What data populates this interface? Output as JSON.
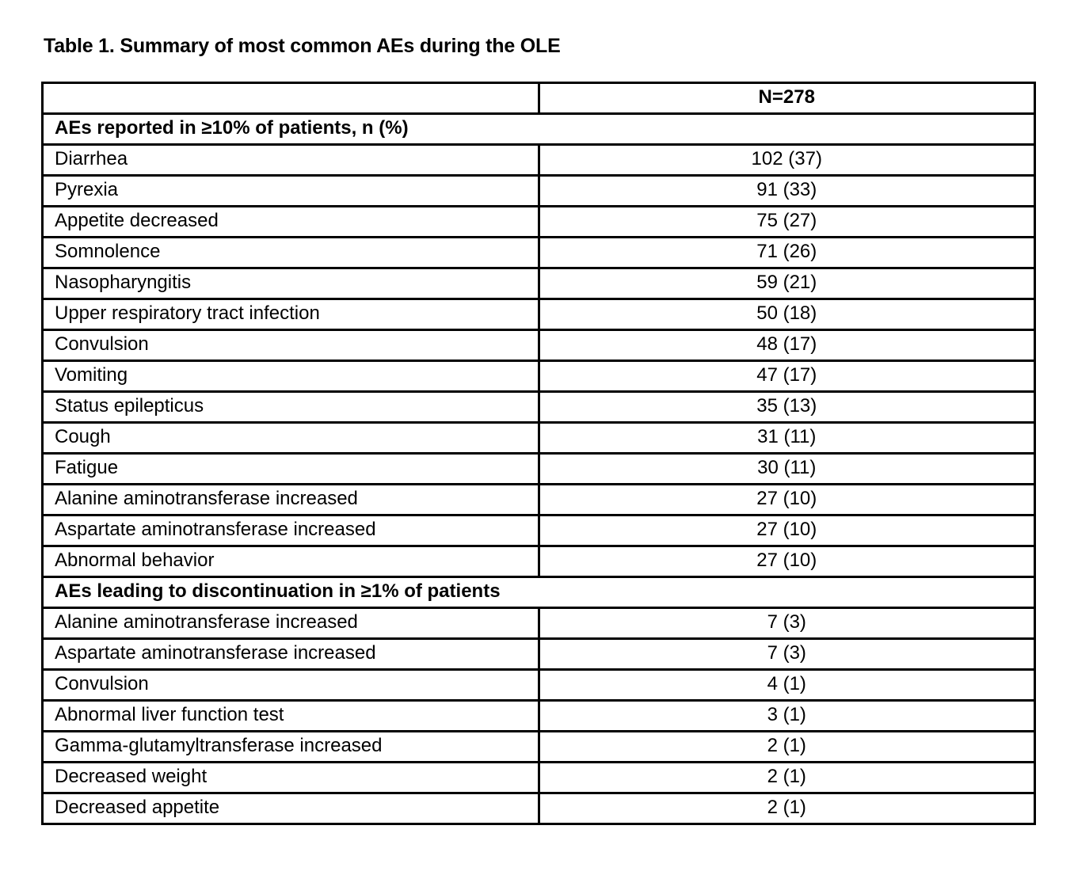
{
  "page": {
    "title": "Table 1. Summary of most common AEs during the OLE"
  },
  "table": {
    "header": {
      "term_col": "",
      "value_col": "N=278"
    },
    "sections": [
      {
        "label": "AEs reported in ≥10% of patients, n (%)",
        "rows": [
          {
            "term": "Diarrhea",
            "value": "102 (37)"
          },
          {
            "term": "Pyrexia",
            "value": "91 (33)"
          },
          {
            "term": "Appetite decreased",
            "value": "75 (27)"
          },
          {
            "term": "Somnolence",
            "value": "71 (26)"
          },
          {
            "term": "Nasopharyngitis",
            "value": "59 (21)"
          },
          {
            "term": "Upper respiratory tract infection",
            "value": "50 (18)"
          },
          {
            "term": "Convulsion",
            "value": "48 (17)"
          },
          {
            "term": "Vomiting",
            "value": "47 (17)"
          },
          {
            "term": "Status epilepticus",
            "value": "35 (13)"
          },
          {
            "term": "Cough",
            "value": "31 (11)"
          },
          {
            "term": "Fatigue",
            "value": "30 (11)"
          },
          {
            "term": "Alanine aminotransferase increased",
            "value": "27 (10)"
          },
          {
            "term": "Aspartate aminotransferase increased",
            "value": "27 (10)"
          },
          {
            "term": "Abnormal behavior",
            "value": "27 (10)"
          }
        ]
      },
      {
        "label": "AEs leading to discontinuation in ≥1% of patients",
        "rows": [
          {
            "term": "Alanine aminotransferase increased",
            "value": "7 (3)"
          },
          {
            "term": "Aspartate aminotransferase increased",
            "value": "7 (3)"
          },
          {
            "term": "Convulsion",
            "value": "4 (1)"
          },
          {
            "term": "Abnormal liver function test",
            "value": "3 (1)"
          },
          {
            "term": "Gamma-glutamyltransferase increased",
            "value": "2 (1)"
          },
          {
            "term": "Decreased weight",
            "value": "2 (1)"
          },
          {
            "term": "Decreased appetite",
            "value": "2 (1)"
          }
        ]
      }
    ]
  }
}
